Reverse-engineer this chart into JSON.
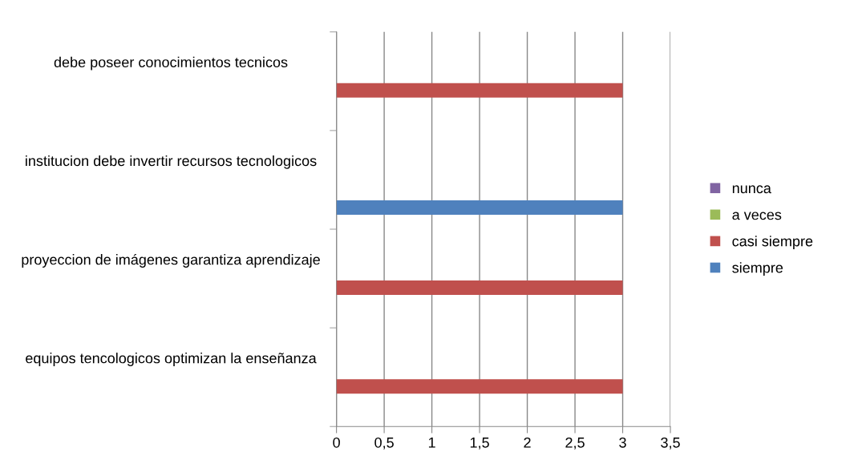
{
  "chart_data": {
    "type": "bar",
    "orientation": "horizontal",
    "categories": [
      "debe poseer conocimientos tecnicos",
      "institucion debe invertir recursos tecnologicos",
      "proyeccion de imágenes garantiza aprendizaje",
      "equipos tencologicos optimizan la enseñanza"
    ],
    "series": [
      {
        "name": "siempre",
        "color": "#4f81bd",
        "values": [
          0,
          3,
          0,
          0
        ]
      },
      {
        "name": "casi siempre",
        "color": "#c0504d",
        "values": [
          3,
          0,
          3,
          3
        ]
      },
      {
        "name": "a veces",
        "color": "#9bbb59",
        "values": [
          0,
          0,
          0,
          0
        ]
      },
      {
        "name": "nunca",
        "color": "#8064a2",
        "values": [
          0,
          0,
          0,
          0
        ]
      }
    ],
    "xlim": [
      0,
      3.5
    ],
    "xticks": [
      0,
      {
        "value": 0.5,
        "label": "0,5"
      },
      1,
      {
        "value": 1.5,
        "label": "1,5"
      },
      2,
      {
        "value": 2.5,
        "label": "2,5"
      },
      3,
      {
        "value": 3.5,
        "label": "3,5"
      }
    ],
    "grid": "x",
    "legend": "right"
  }
}
